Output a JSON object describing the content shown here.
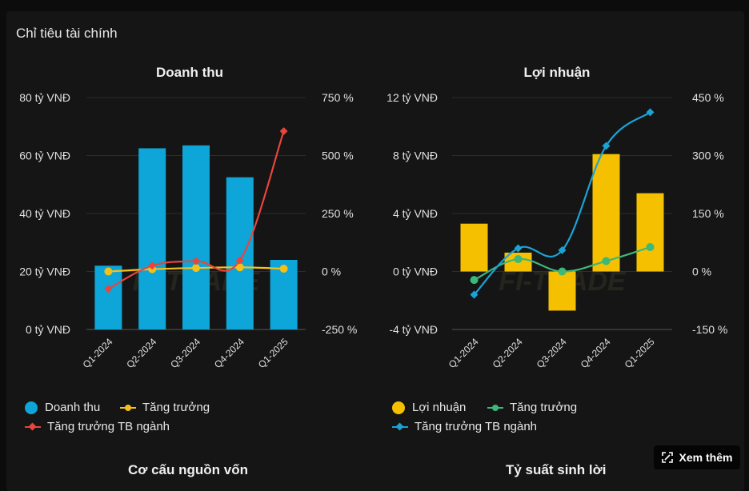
{
  "page_title": "Chỉ tiêu tài chính",
  "more_button": "Xem thêm",
  "bottom_titles": [
    "Cơ cấu nguồn vốn",
    "Tỷ suất sinh lời"
  ],
  "watermark": "FI-TRADE VALUE DATA - SMART INVEST",
  "chart_data": [
    {
      "type": "bar",
      "title": "Doanh thu",
      "categories": [
        "Q1-2024",
        "Q2-2024",
        "Q3-2024",
        "Q4-2024",
        "Q1-2025"
      ],
      "y_left": {
        "ticks": [
          "80 tỷ VNĐ",
          "60 tỷ VNĐ",
          "40 tỷ VNĐ",
          "20 tỷ VNĐ",
          "0 tỷ VNĐ"
        ],
        "range": [
          0,
          80
        ]
      },
      "y_right": {
        "ticks": [
          "750 %",
          "500 %",
          "250 %",
          "0 %",
          "-250 %"
        ],
        "range": [
          -250,
          750
        ]
      },
      "series": [
        {
          "name": "Doanh thu",
          "kind": "bar",
          "axis": "left",
          "color": "#0ea5d8",
          "values": [
            22,
            62.5,
            63.5,
            52.5,
            24
          ]
        },
        {
          "name": "Tăng trưởng",
          "kind": "line",
          "marker": "circle",
          "axis": "right",
          "color": "#f5c018",
          "values": [
            0,
            10,
            15,
            18,
            12
          ]
        },
        {
          "name": "Tăng trưởng TB ngành",
          "kind": "line",
          "marker": "diamond",
          "axis": "right",
          "color": "#e8453c",
          "values": [
            -75,
            25,
            45,
            48,
            605
          ]
        }
      ],
      "legend": [
        "Doanh thu",
        "Tăng trưởng",
        "Tăng trưởng TB ngành"
      ]
    },
    {
      "type": "bar",
      "title": "Lợi nhuận",
      "categories": [
        "Q1-2024",
        "Q2-2024",
        "Q3-2024",
        "Q4-2024",
        "Q1-2025"
      ],
      "y_left": {
        "ticks": [
          "12 tỷ VNĐ",
          "8 tỷ VNĐ",
          "4 tỷ VNĐ",
          "0 tỷ VNĐ",
          "-4 tỷ VNĐ"
        ],
        "range": [
          -4,
          12
        ]
      },
      "y_right": {
        "ticks": [
          "450 %",
          "300 %",
          "150 %",
          "0 %",
          "-150 %"
        ],
        "range": [
          -150,
          450
        ]
      },
      "series": [
        {
          "name": "Lợi nhuận",
          "kind": "bar",
          "axis": "left",
          "color": "#f5c000",
          "values": [
            3.3,
            1.3,
            -2.7,
            8.1,
            5.4
          ]
        },
        {
          "name": "Tăng trưởng",
          "kind": "line",
          "marker": "circle",
          "axis": "right",
          "color": "#3cb878",
          "values": [
            -22,
            32,
            0,
            27,
            63
          ]
        },
        {
          "name": "Tăng trưởng TB ngành",
          "kind": "line",
          "marker": "diamond",
          "axis": "right",
          "color": "#1aa3d5",
          "values": [
            -60,
            60,
            55,
            325,
            412
          ]
        }
      ],
      "legend": [
        "Lợi nhuận",
        "Tăng trưởng",
        "Tăng trưởng TB ngành"
      ]
    }
  ]
}
